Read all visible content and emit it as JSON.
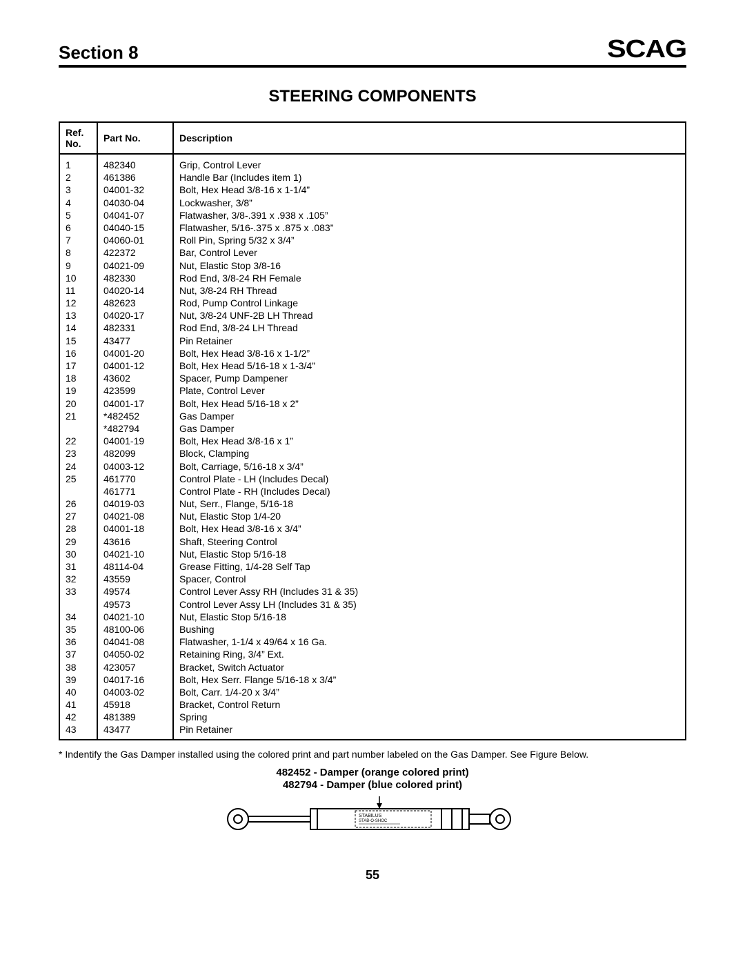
{
  "header": {
    "section_label": "Section 8",
    "brand": "SCAG"
  },
  "title": "STEERING COMPONENTS",
  "table": {
    "headers": {
      "ref": "Ref. No.",
      "part": "Part No.",
      "desc": "Description"
    },
    "rows": [
      {
        "ref": "1",
        "part": "482340",
        "desc": "Grip, Control Lever"
      },
      {
        "ref": "2",
        "part": "461386",
        "desc": "Handle Bar (Includes item 1)"
      },
      {
        "ref": "3",
        "part": "04001-32",
        "desc": "Bolt, Hex Head 3/8-16 x 1-1/4”"
      },
      {
        "ref": "4",
        "part": "04030-04",
        "desc": "Lockwasher, 3/8”"
      },
      {
        "ref": "5",
        "part": "04041-07",
        "desc": "Flatwasher, 3/8-.391 x .938 x .105”"
      },
      {
        "ref": "6",
        "part": "04040-15",
        "desc": "Flatwasher, 5/16-.375 x .875 x .083”"
      },
      {
        "ref": "7",
        "part": "04060-01",
        "desc": "Roll Pin, Spring 5/32 x 3/4”"
      },
      {
        "ref": "8",
        "part": "422372",
        "desc": "Bar, Control Lever"
      },
      {
        "ref": "9",
        "part": "04021-09",
        "desc": "Nut, Elastic Stop 3/8-16"
      },
      {
        "ref": "10",
        "part": "482330",
        "desc": "Rod End, 3/8-24 RH Female"
      },
      {
        "ref": "11",
        "part": "04020-14",
        "desc": "Nut, 3/8-24 RH Thread"
      },
      {
        "ref": "12",
        "part": "482623",
        "desc": "Rod, Pump Control Linkage"
      },
      {
        "ref": "13",
        "part": "04020-17",
        "desc": "Nut, 3/8-24 UNF-2B LH Thread"
      },
      {
        "ref": "14",
        "part": "482331",
        "desc": "Rod End, 3/8-24 LH Thread"
      },
      {
        "ref": "15",
        "part": "43477",
        "desc": "Pin Retainer"
      },
      {
        "ref": "16",
        "part": "04001-20",
        "desc": "Bolt, Hex  Head 3/8-16 x 1-1/2”"
      },
      {
        "ref": "17",
        "part": "04001-12",
        "desc": "Bolt, Hex Head 5/16-18 x 1-3/4”"
      },
      {
        "ref": "18",
        "part": "43602",
        "desc": "Spacer, Pump Dampener"
      },
      {
        "ref": "19",
        "part": "423599",
        "desc": "Plate, Control Lever"
      },
      {
        "ref": "20",
        "part": "04001-17",
        "desc": "Bolt, Hex Head 5/16-18 x 2”"
      },
      {
        "ref": "21",
        "part": "*482452",
        "desc": "Gas Damper"
      },
      {
        "ref": "",
        "part": "*482794",
        "desc": "Gas Damper"
      },
      {
        "ref": "22",
        "part": "04001-19",
        "desc": "Bolt, Hex Head 3/8-16 x 1”"
      },
      {
        "ref": "23",
        "part": "482099",
        "desc": "Block, Clamping"
      },
      {
        "ref": "24",
        "part": "04003-12",
        "desc": "Bolt, Carriage, 5/16-18 x 3/4”"
      },
      {
        "ref": "25",
        "part": "461770",
        "desc": "Control Plate - LH (Includes Decal)"
      },
      {
        "ref": "",
        "part": "461771",
        "desc": "Control Plate - RH (Includes Decal)"
      },
      {
        "ref": "26",
        "part": "04019-03",
        "desc": "Nut, Serr., Flange, 5/16-18"
      },
      {
        "ref": "27",
        "part": "04021-08",
        "desc": "Nut, Elastic Stop 1/4-20"
      },
      {
        "ref": "28",
        "part": "04001-18",
        "desc": "Bolt, Hex Head 3/8-16 x 3/4”"
      },
      {
        "ref": "29",
        "part": "43616",
        "desc": "Shaft, Steering Control"
      },
      {
        "ref": "30",
        "part": "04021-10",
        "desc": "Nut, Elastic Stop 5/16-18"
      },
      {
        "ref": "31",
        "part": "48114-04",
        "desc": "Grease Fitting, 1/4-28 Self Tap"
      },
      {
        "ref": "32",
        "part": "43559",
        "desc": "Spacer, Control"
      },
      {
        "ref": "33",
        "part": "49574",
        "desc": "Control Lever Assy RH (Includes 31 & 35)"
      },
      {
        "ref": "",
        "part": "49573",
        "desc": "Control Lever Assy LH (Includes 31 & 35)"
      },
      {
        "ref": "34",
        "part": "04021-10",
        "desc": "Nut, Elastic Stop 5/16-18"
      },
      {
        "ref": "35",
        "part": "48100-06",
        "desc": "Bushing"
      },
      {
        "ref": "36",
        "part": "04041-08",
        "desc": "Flatwasher, 1-1/4 x 49/64 x 16 Ga."
      },
      {
        "ref": "37",
        "part": "04050-02",
        "desc": "Retaining Ring, 3/4” Ext."
      },
      {
        "ref": "38",
        "part": "423057",
        "desc": "Bracket, Switch Actuator"
      },
      {
        "ref": "39",
        "part": "04017-16",
        "desc": "Bolt, Hex Serr. Flange 5/16-18 x 3/4”"
      },
      {
        "ref": "40",
        "part": "04003-02",
        "desc": "Bolt, Carr. 1/4-20 x 3/4”"
      },
      {
        "ref": "41",
        "part": "45918",
        "desc": "Bracket, Control Return"
      },
      {
        "ref": "42",
        "part": "481389",
        "desc": "Spring"
      },
      {
        "ref": "43",
        "part": "43477",
        "desc": "Pin Retainer"
      }
    ]
  },
  "footnote": "* Indentify the Gas Damper installed using the colored print and part number labeled on the Gas Damper. See Figure Below.",
  "damper": {
    "label1": "482452 - Damper (orange colored print)",
    "label2": "482794 - Damper (blue colored print)",
    "tag_line1": "STABILUS",
    "tag_line2": "STAB-O-SHOC"
  },
  "page_number": "55",
  "colors": {
    "text": "#000000",
    "bg": "#ffffff",
    "border": "#000000"
  }
}
